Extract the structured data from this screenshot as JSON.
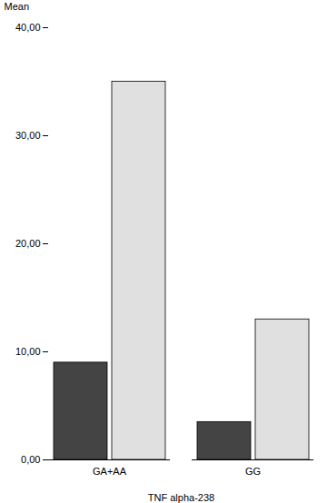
{
  "chart_data": {
    "type": "bar",
    "categories": [
      "GA+AA",
      "GG"
    ],
    "series": [
      {
        "color": "#444444",
        "values": [
          9.0,
          3.5
        ]
      },
      {
        "color": "#e0e0e0",
        "values": [
          35.0,
          13.0
        ]
      }
    ],
    "xlabel": "TNF alpha-238",
    "ylabel": "Mean",
    "ylim": [
      0,
      40
    ],
    "yticks": [
      {
        "value": 0,
        "label": "0,00"
      },
      {
        "value": 10,
        "label": "10,00"
      },
      {
        "value": 20,
        "label": "20,00"
      },
      {
        "value": 30,
        "label": "30,00"
      },
      {
        "value": 40,
        "label": "40,00"
      }
    ],
    "grid": false
  }
}
